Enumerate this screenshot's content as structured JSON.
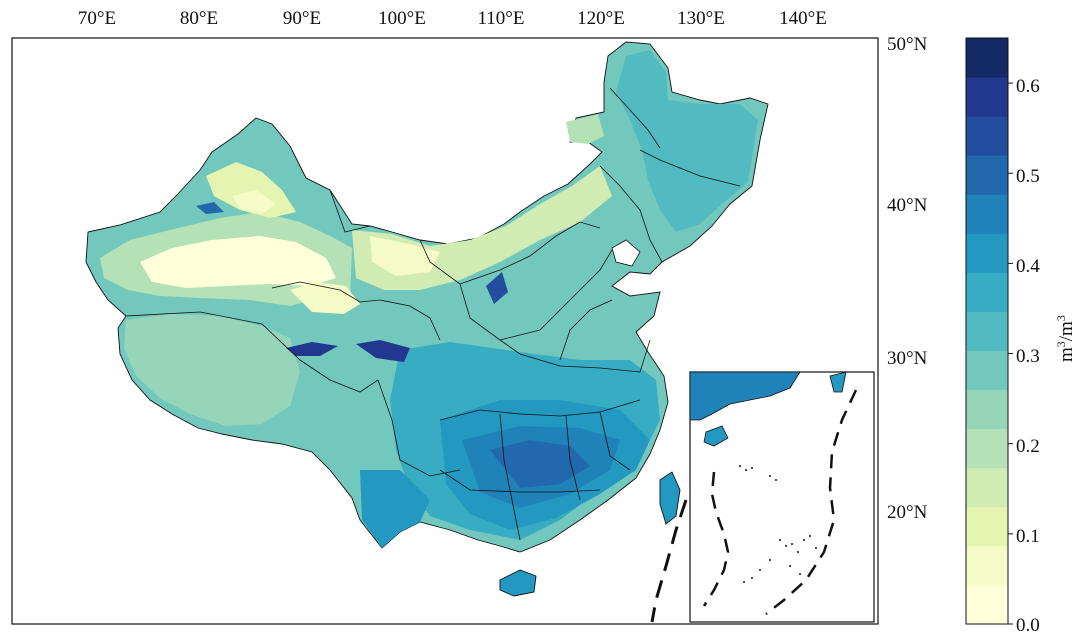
{
  "map": {
    "longitude_labels": [
      "70°E",
      "80°E",
      "90°E",
      "100°E",
      "110°E",
      "120°E",
      "130°E",
      "140°E"
    ],
    "latitude_labels": [
      "50°N",
      "40°N",
      "30°N",
      "20°N"
    ],
    "colorbar": {
      "tick_labels": [
        "0.0",
        "0.1",
        "0.2",
        "0.3",
        "0.4",
        "0.5",
        "0.6"
      ],
      "unit_base": "m",
      "unit_exp1": "3",
      "unit_sep": "/m",
      "unit_exp2": "3",
      "colors": [
        "#ffffd9",
        "#f5fbc6",
        "#e6f4b2",
        "#d0ecb3",
        "#b5e1b6",
        "#96d5b9",
        "#73c8bd",
        "#52bbc1",
        "#38acc3",
        "#2399c1",
        "#1f82b8",
        "#2168ad",
        "#234ea0",
        "#22388f",
        "#142a66"
      ]
    }
  }
}
